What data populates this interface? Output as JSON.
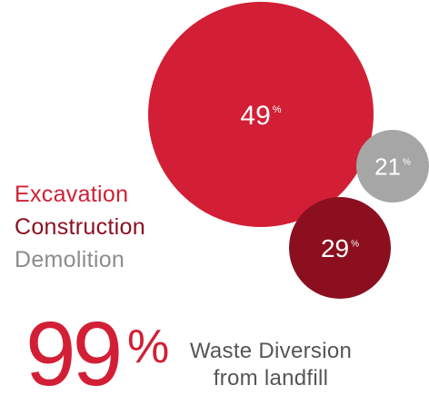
{
  "chart_data": {
    "type": "bubble",
    "title": "",
    "unit_suffix": "%",
    "series": [
      {
        "name": "Excavation",
        "value": 49,
        "label": "49",
        "color": "#d21f35"
      },
      {
        "name": "Demolition",
        "value": 21,
        "label": "21",
        "color": "#a6a6a6"
      },
      {
        "name": "Construction",
        "value": 29,
        "label": "29",
        "color": "#8b0f1f"
      }
    ],
    "legend": {
      "placement": "left",
      "items": [
        {
          "label": "Excavation",
          "color": "#d21f35"
        },
        {
          "label": "Construction",
          "color": "#8b0f1f"
        },
        {
          "label": "Demolition",
          "color": "#8c8c8c"
        }
      ]
    }
  },
  "headline": {
    "value": "99",
    "unit": "%",
    "label_line1": "Waste Diversion",
    "label_line2": "from landfill",
    "color": "#d21f35"
  },
  "bubble_label_color": "#ffffff"
}
